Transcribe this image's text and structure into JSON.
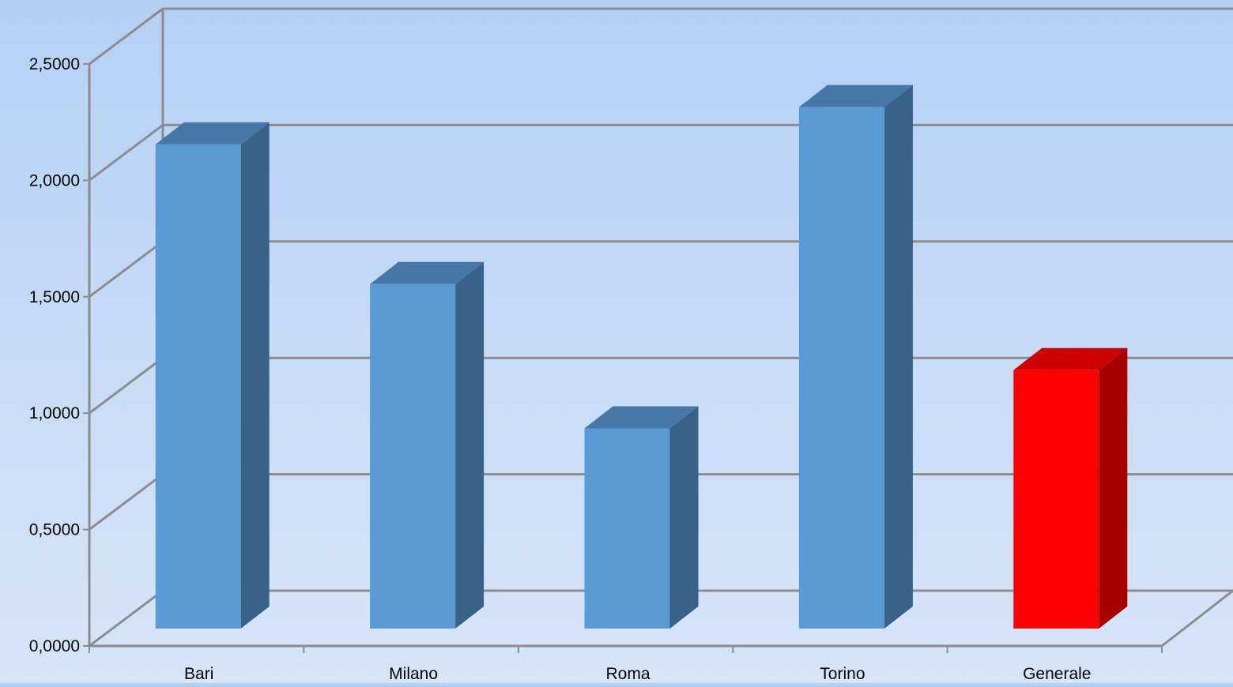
{
  "chart_data": {
    "type": "bar",
    "title": "",
    "xlabel": "",
    "ylabel": "",
    "categories": [
      "Bari",
      "Milano",
      "Roma",
      "Torino",
      "Generale"
    ],
    "series": [
      {
        "values": [
          2.08,
          1.48,
          0.86,
          2.24,
          1.11
        ]
      }
    ],
    "ylim": [
      0,
      2.5
    ],
    "yticks": [
      "0,0000",
      "0,5000",
      "1,0000",
      "1,5000",
      "2,0000",
      "2,5000"
    ],
    "grid": true,
    "style": "3d-column",
    "colors": {
      "bar_front": "#5b9bd5",
      "bar_top": "#4677a6",
      "bar_side": "#386287",
      "highlight_front": "#ff0000",
      "highlight_top": "#cc0000",
      "highlight_side": "#a80000",
      "grid": "#8c8c8c"
    },
    "highlight_category": "Generale"
  }
}
